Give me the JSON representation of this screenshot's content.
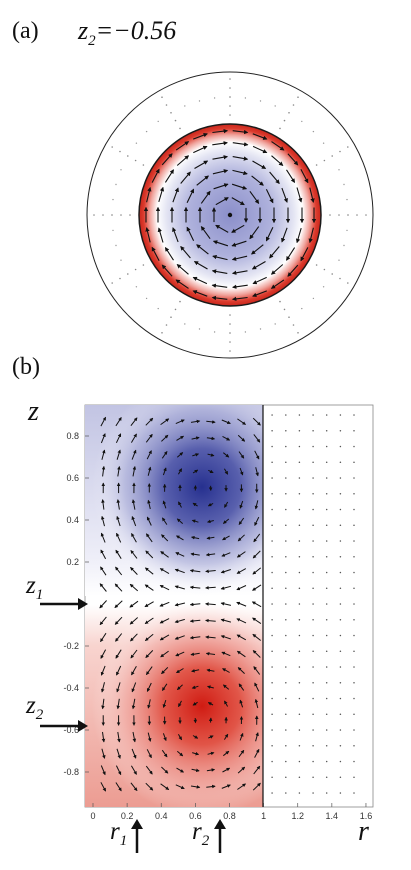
{
  "panel_a": {
    "label": "(a)",
    "title_var": "z",
    "title_sub": "2",
    "title_value": "=−0.56"
  },
  "panel_b": {
    "label": "(b)",
    "y_axis_var": "z",
    "x_axis_var": "r",
    "markers": {
      "z1": {
        "var": "z",
        "sub": "1"
      },
      "z2": {
        "var": "z",
        "sub": "2"
      },
      "r1": {
        "var": "r",
        "sub": "1"
      },
      "r2": {
        "var": "r",
        "sub": "2"
      }
    }
  },
  "chart_data": {
    "type": "heatmap",
    "x_ticks": [
      "0",
      "0.2",
      "0.4",
      "0.6",
      "0.8",
      "1",
      "1.2",
      "1.4",
      "1.6"
    ],
    "y_ticks": [
      "0.8",
      "0.6",
      "0.4",
      "0.2",
      "-0.2",
      "-0.4",
      "-0.6",
      "-0.8"
    ],
    "xlim": [
      0,
      1.6
    ],
    "ylim": [
      -0.92,
      0.92
    ],
    "boundary_r": 1.0,
    "upper_lobe_center": [
      0.65,
      0.55
    ],
    "lower_lobe_center": [
      0.65,
      -0.55
    ],
    "colors": {
      "positive": "#d42a20",
      "negative": "#26308f",
      "zero": "#ffffff"
    }
  }
}
